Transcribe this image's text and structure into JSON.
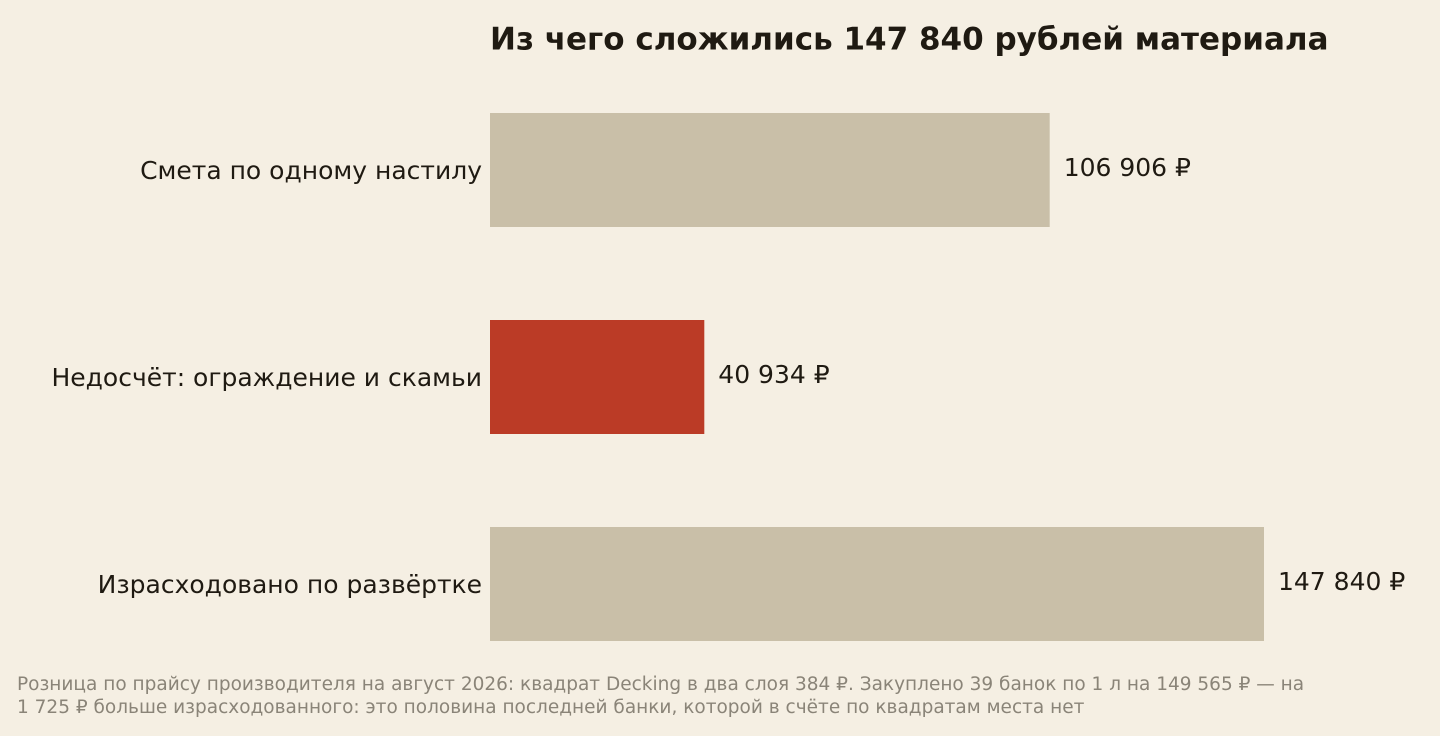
{
  "chart_data": {
    "type": "bar",
    "orientation": "horizontal",
    "title": "Из чего сложились 147 840 рублей материала",
    "categories": [
      "Смета по одному настилу",
      "Недосчёт: ограждение и скамьи",
      "Израсходовано по развёртке"
    ],
    "values": [
      106906,
      40934,
      147840
    ],
    "value_labels": [
      "106 906 ₽",
      "40 934 ₽",
      "147 840 ₽"
    ],
    "colors": [
      "#c9bfa8",
      "#bb3b26",
      "#c9bfa8"
    ],
    "footnote": [
      "Розница по прайсу производителя на август 2026: квадрат Decking в два слоя 384 ₽. Закуплено 39 банок по 1 л на 149 565 ₽ — на",
      "1 725 ₽ больше израсходованного: это половина последней банки, которой в счёте по квадратам места нет"
    ]
  }
}
